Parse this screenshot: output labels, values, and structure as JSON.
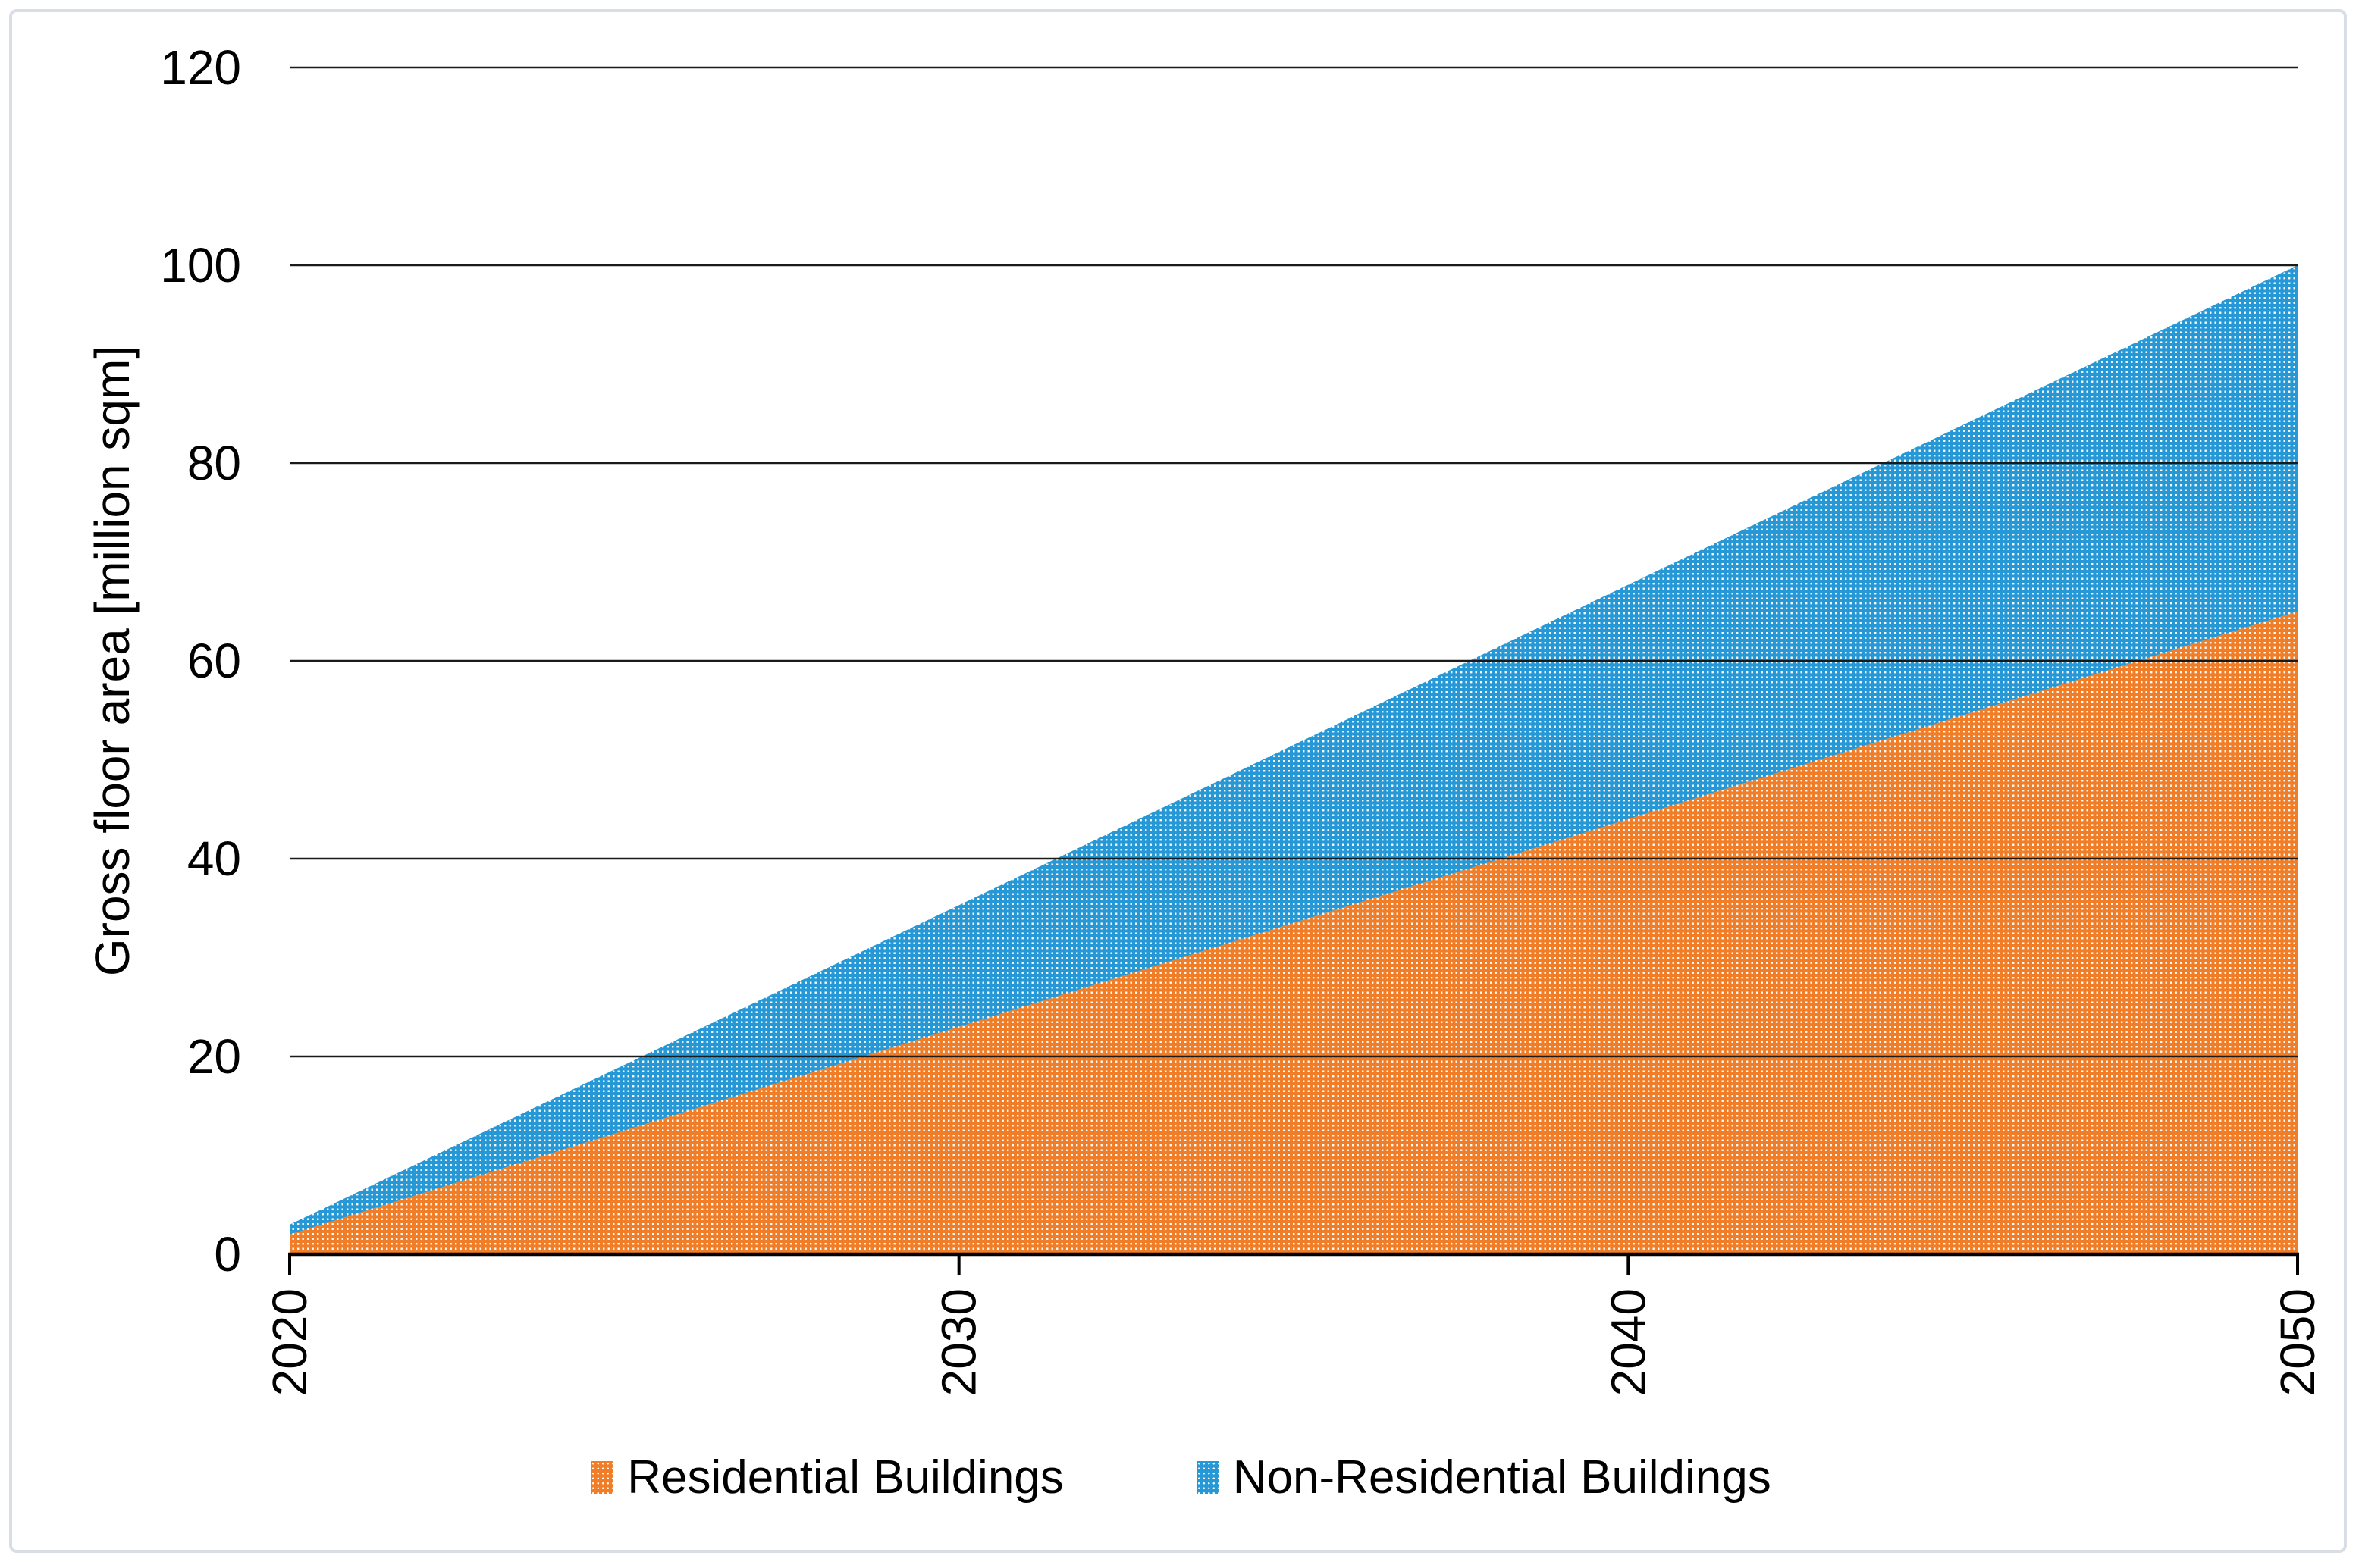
{
  "figure": {
    "background": "#ffffff",
    "border_color": "#d9dee6"
  },
  "chart_data": {
    "type": "area",
    "stacked": true,
    "x": [
      2020,
      2030,
      2040,
      2050
    ],
    "xtick_labels": [
      "2020",
      "2030",
      "2040",
      "2050"
    ],
    "series": [
      {
        "name": "Residential Buildings",
        "color": "#f07e28",
        "values": [
          2,
          23,
          44,
          65
        ]
      },
      {
        "name": "Non-Residential Buildings",
        "color": "#2598d5",
        "values": [
          1,
          12.3,
          23.7,
          35
        ]
      }
    ],
    "stacked_totals": [
      3,
      35.3,
      67.7,
      100
    ],
    "title": "",
    "xlabel": "",
    "ylabel": "Gross floor area [million sqm]",
    "ylim": [
      0,
      120
    ],
    "yticks": [
      0,
      20,
      40,
      60,
      80,
      100,
      120
    ],
    "grid": "horizontal",
    "gridline_color": "#1a1a1a",
    "axis_color": "#000000",
    "text_color": "#000000",
    "fill_pattern": "white-dots",
    "legend_position": "bottom"
  }
}
